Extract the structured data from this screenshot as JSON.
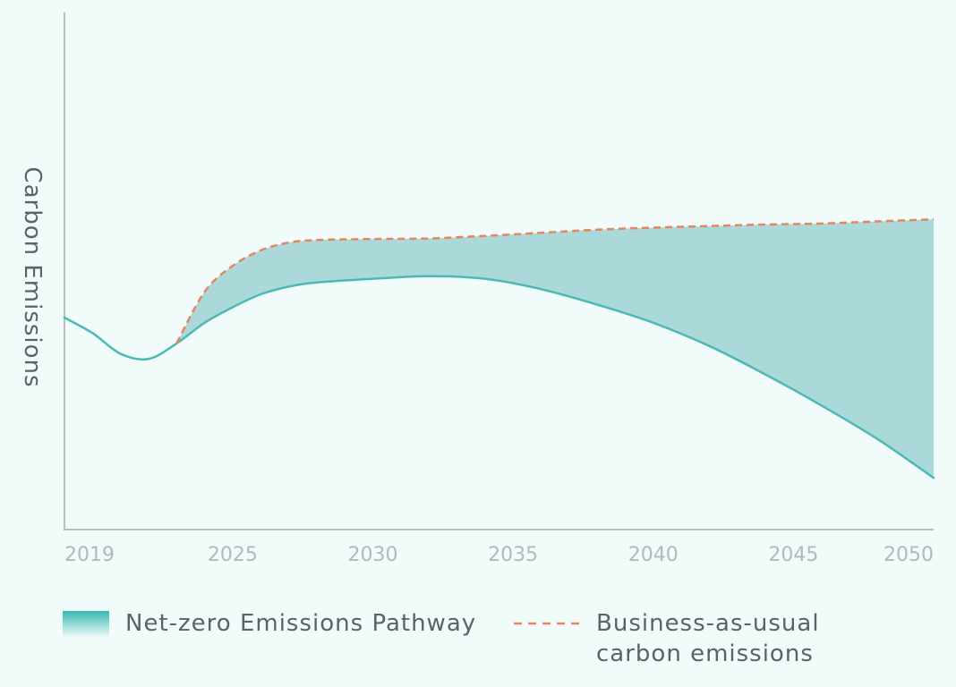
{
  "chart_data": {
    "type": "area",
    "title": "",
    "xlabel": "",
    "ylabel": "Carbon Emissions",
    "xlim": [
      2019,
      2050
    ],
    "ylim": [
      0,
      100
    ],
    "x_ticks": [
      "2019",
      "2025",
      "2030",
      "2035",
      "2040",
      "2045",
      "2050"
    ],
    "grid": false,
    "legend_placement": "bottom",
    "series": [
      {
        "name": "Net-zero Emissions Pathway",
        "style": "solid",
        "color": "#4cbab4",
        "x": [
          2019,
          2020,
          2021,
          2022,
          2023,
          2024,
          2025,
          2026,
          2027,
          2028,
          2030,
          2032,
          2034,
          2036,
          2038,
          2040,
          2042,
          2044,
          2046,
          2048,
          2050
        ],
        "values": [
          41,
          38,
          34,
          33,
          36,
          40,
          43,
          45.5,
          47,
          47.8,
          48.5,
          49,
          48.5,
          46.5,
          43.5,
          40,
          35.5,
          30,
          24,
          17.5,
          10
        ]
      },
      {
        "name": "Business-as-usual carbon emissions",
        "style": "dashed",
        "color": "#e8845e",
        "x": [
          2023,
          2024,
          2025,
          2026,
          2027,
          2028,
          2030,
          2032,
          2034,
          2036,
          2038,
          2040,
          2042,
          2044,
          2046,
          2048,
          2050
        ],
        "values": [
          36,
          46,
          51,
          54,
          55.5,
          56,
          56.2,
          56.3,
          56.8,
          57.4,
          58,
          58.4,
          58.7,
          59,
          59.2,
          59.6,
          60
        ]
      }
    ],
    "fill_between": {
      "color": "#abd9da",
      "from": "Net-zero Emissions Pathway",
      "to": "Business-as-usual carbon emissions"
    }
  },
  "legend": {
    "netzero_label": "Net-zero Emissions Pathway",
    "bau_label_line1": "Business-as-usual",
    "bau_label_line2": "carbon emissions"
  }
}
